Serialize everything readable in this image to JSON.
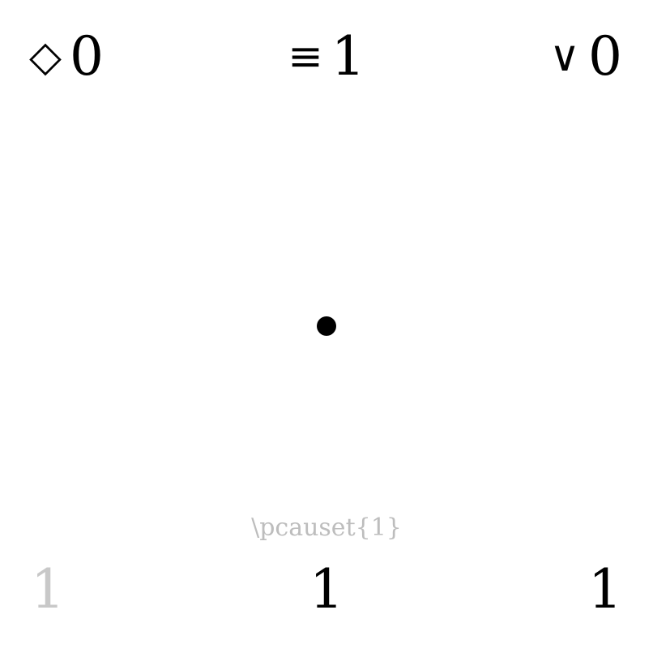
{
  "stats": {
    "left": {
      "symbol": "◇",
      "icon": "diamond-icon",
      "value": "0"
    },
    "center": {
      "symbol": "≡",
      "icon": "equivalence-icon",
      "value": "1"
    },
    "right": {
      "symbol": "∨",
      "icon": "logical-or-icon",
      "value": "0"
    }
  },
  "diagram": {
    "elements": 1,
    "node_color": "#000000"
  },
  "caption": "\\pcauset{1}",
  "bottom": {
    "left": "1",
    "center": "1",
    "right": "1"
  },
  "colors": {
    "text": "#000000",
    "muted": "#c8c8c8",
    "caption": "#bdbdbd",
    "background": "#ffffff"
  }
}
